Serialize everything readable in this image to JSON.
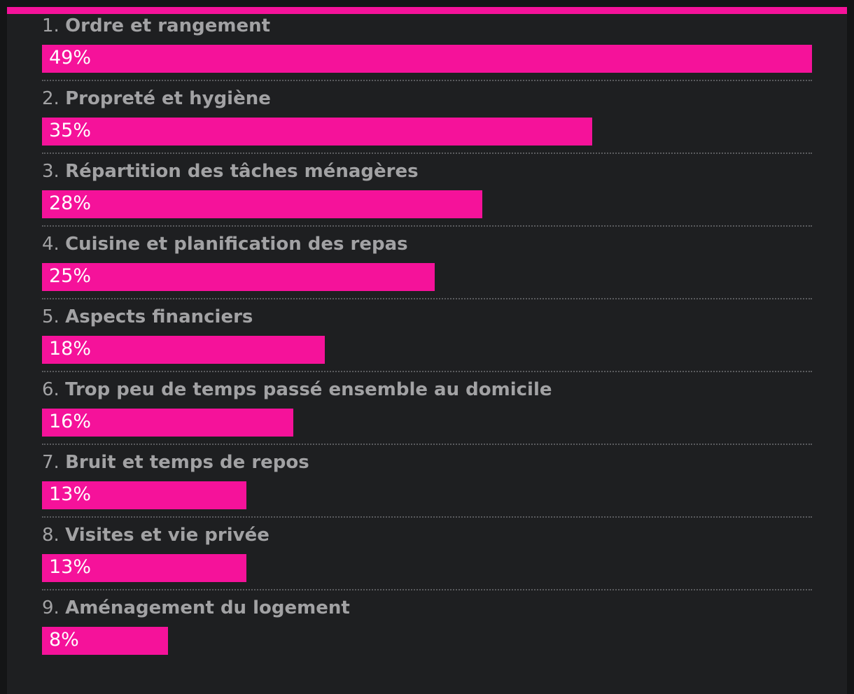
{
  "colors": {
    "accent": "#f5129a",
    "background": "#1e1f21",
    "label_text": "#a2a2a4",
    "value_text": "#ffffff"
  },
  "chart_data": {
    "type": "bar",
    "orientation": "horizontal",
    "categories": [
      "Ordre et rangement",
      "Propreté et hygiène",
      "Répartition des tâches ménagères",
      "Cuisine et planification des repas",
      "Aspects financiers",
      "Trop peu de temps passé ensemble au domicile",
      "Bruit et temps de repos",
      "Visites et vie privée",
      "Aménagement du logement"
    ],
    "ranks": [
      "1.",
      "2.",
      "3.",
      "4.",
      "5.",
      "6.",
      "7.",
      "8.",
      "9."
    ],
    "values": [
      49,
      35,
      28,
      25,
      18,
      16,
      13,
      13,
      8
    ],
    "value_labels": [
      "49%",
      "35%",
      "28%",
      "25%",
      "18%",
      "16%",
      "13%",
      "13%",
      "8%"
    ],
    "unit": "%",
    "xlim": [
      0,
      49
    ],
    "grid": false
  }
}
